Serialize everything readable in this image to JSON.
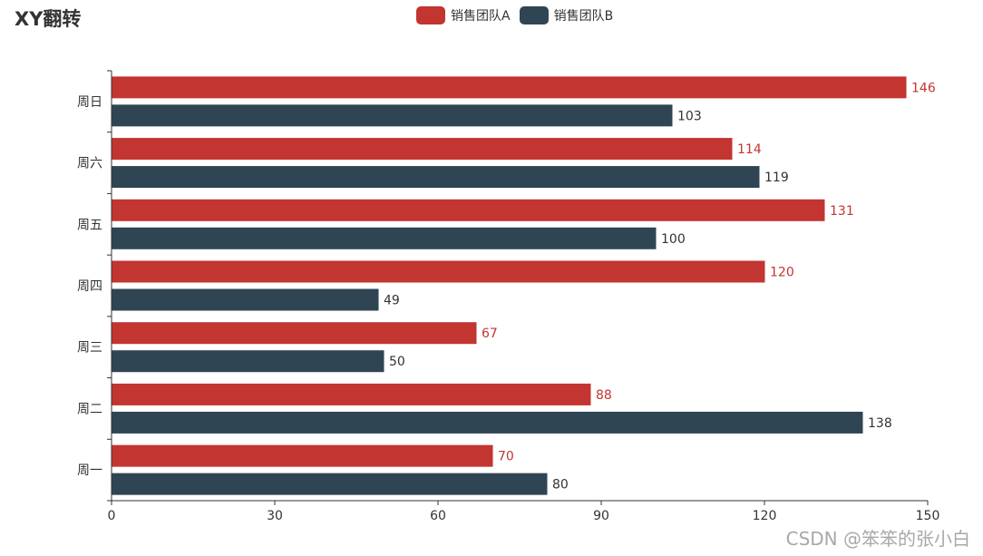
{
  "chart_data": {
    "type": "bar",
    "orientation": "horizontal",
    "title": "XY翻转",
    "categories": [
      "周一",
      "周二",
      "周三",
      "周四",
      "周五",
      "周六",
      "周日"
    ],
    "series": [
      {
        "name": "销售团队A",
        "color": "#c23531",
        "values": [
          70,
          88,
          67,
          120,
          131,
          114,
          146
        ]
      },
      {
        "name": "销售团队B",
        "color": "#2f4554",
        "values": [
          80,
          138,
          50,
          49,
          100,
          119,
          103
        ]
      }
    ],
    "xlim": [
      0,
      150
    ],
    "xticks": [
      0,
      30,
      60,
      90,
      120,
      150
    ],
    "xlabel": "",
    "ylabel": "",
    "grid": false,
    "legend_position": "top-center",
    "data_labels": true
  },
  "watermark": "CSDN @笨笨的张小白"
}
